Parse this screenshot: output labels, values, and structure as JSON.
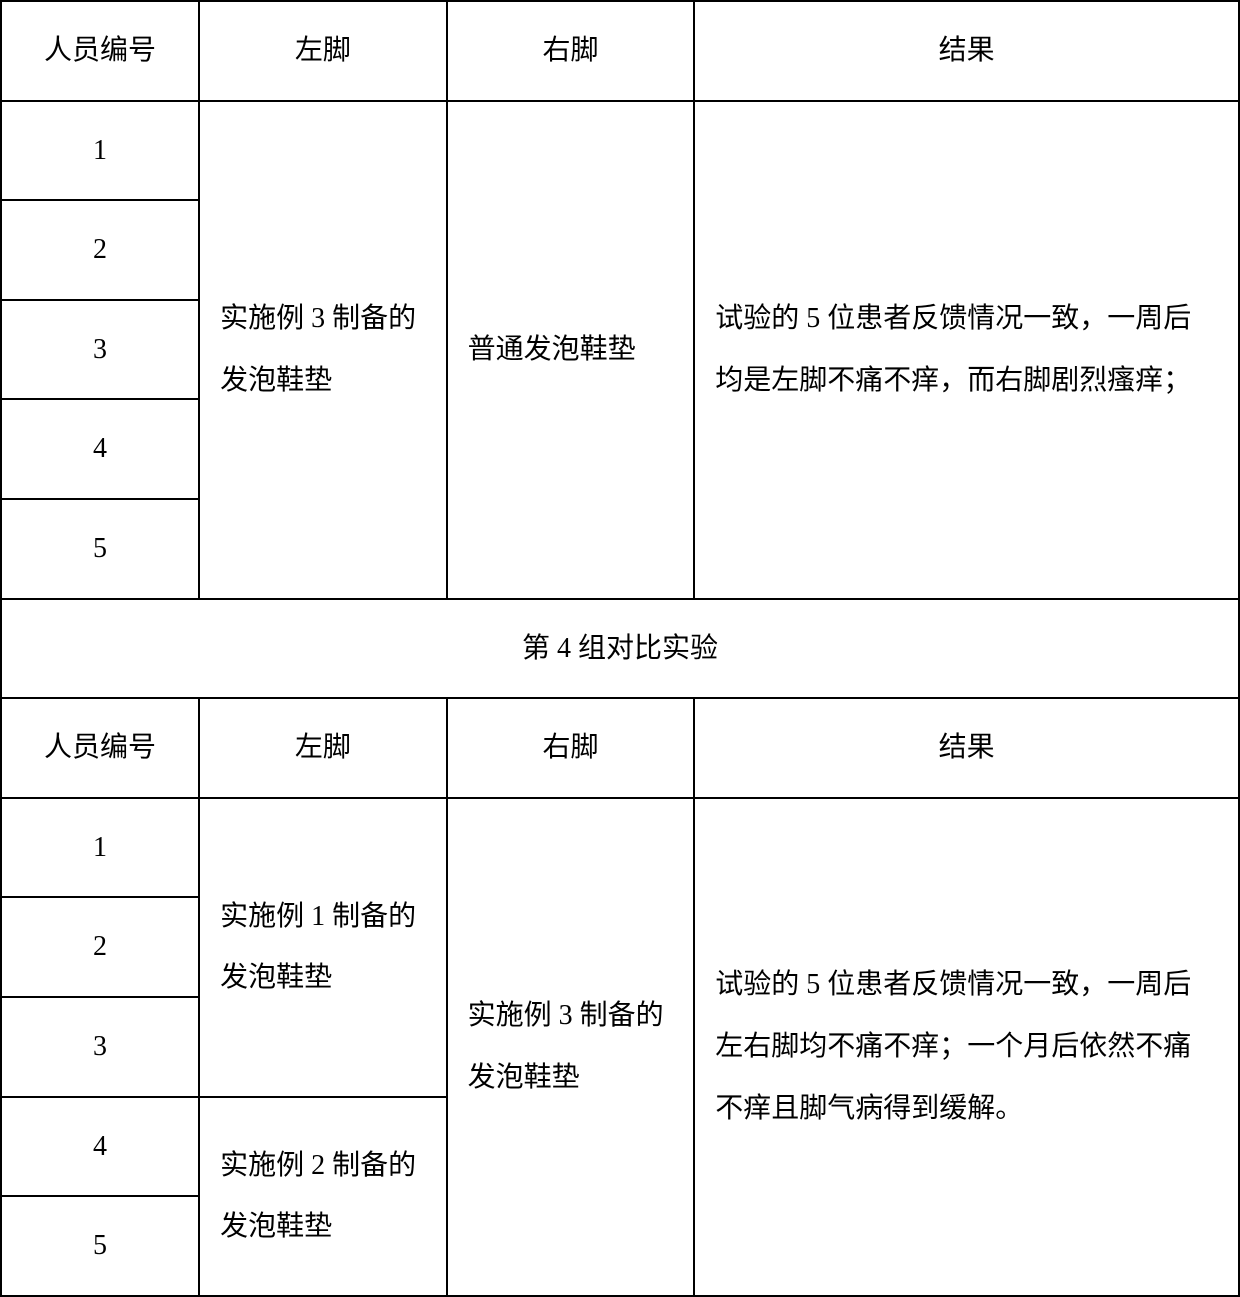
{
  "table": {
    "columns": {
      "id": "人员编号",
      "left": "左脚",
      "right": "右脚",
      "result": "结果"
    },
    "section1": {
      "ids": [
        "1",
        "2",
        "3",
        "4",
        "5"
      ],
      "left_foot": "实施例 3 制备的发泡鞋垫",
      "right_foot": "普通发泡鞋垫",
      "result": "试验的 5 位患者反馈情况一致，一周后均是左脚不痛不痒，而右脚剧烈瘙痒；"
    },
    "section_divider": "第 4 组对比实验",
    "section2": {
      "ids": [
        "1",
        "2",
        "3",
        "4",
        "5"
      ],
      "left_foot_a": "实施例 1 制备的发泡鞋垫",
      "left_foot_b": "实施例 2 制备的发泡鞋垫",
      "right_foot": "实施例 3 制备的发泡鞋垫",
      "result": "试验的 5 位患者反馈情况一致，一周后左右脚均不痛不痒；一个月后依然不痛不痒且脚气病得到缓解。"
    },
    "border_color": "#000000",
    "background_color": "#ffffff",
    "font_size": 28,
    "line_height": 2.2
  }
}
